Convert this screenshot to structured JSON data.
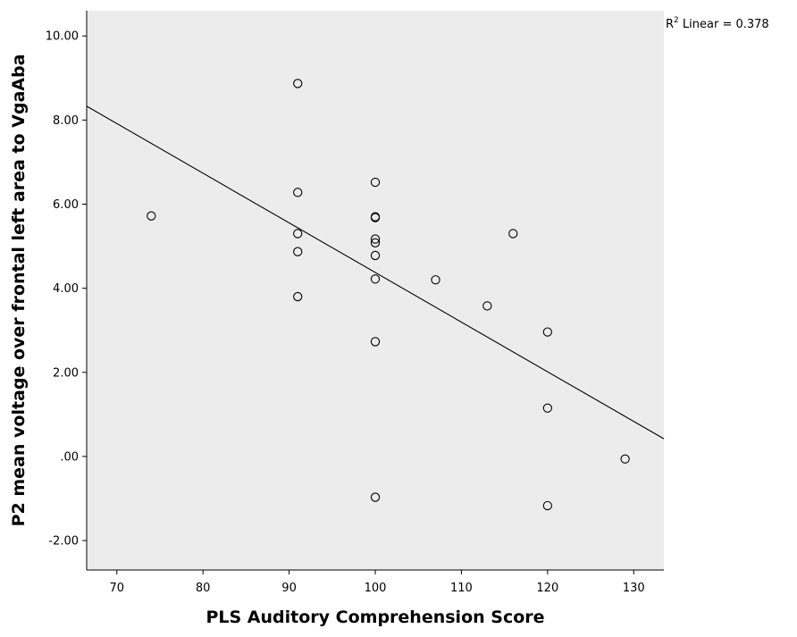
{
  "chart_data": {
    "type": "scatter",
    "title": "",
    "xlabel": "PLS Auditory Comprehension Score",
    "ylabel": "P2 mean voltage over frontal left area to VgaAba",
    "xlim": [
      66.5,
      133.5
    ],
    "ylim": [
      -2.7,
      10.6
    ],
    "x_ticks": [
      70,
      80,
      90,
      100,
      110,
      120,
      130
    ],
    "x_tick_labels": [
      "70",
      "80",
      "90",
      "100",
      "110",
      "120",
      "130"
    ],
    "y_ticks": [
      -2,
      0,
      2,
      4,
      6,
      8,
      10
    ],
    "y_tick_labels": [
      "-2.00",
      ".00",
      "2.00",
      "4.00",
      "6.00",
      "8.00",
      "10.00"
    ],
    "grid": false,
    "points": [
      {
        "x": 74,
        "y": 5.72
      },
      {
        "x": 91,
        "y": 8.87
      },
      {
        "x": 91,
        "y": 6.28
      },
      {
        "x": 91,
        "y": 5.3
      },
      {
        "x": 91,
        "y": 4.87
      },
      {
        "x": 91,
        "y": 3.8
      },
      {
        "x": 100,
        "y": 6.52
      },
      {
        "x": 100,
        "y": 5.7
      },
      {
        "x": 100,
        "y": 5.68
      },
      {
        "x": 100,
        "y": 5.17
      },
      {
        "x": 100,
        "y": 5.08
      },
      {
        "x": 100,
        "y": 4.78
      },
      {
        "x": 100,
        "y": 4.22
      },
      {
        "x": 100,
        "y": 2.73
      },
      {
        "x": 100,
        "y": -0.97
      },
      {
        "x": 107,
        "y": 4.2
      },
      {
        "x": 113,
        "y": 3.58
      },
      {
        "x": 116,
        "y": 5.3
      },
      {
        "x": 120,
        "y": 2.96
      },
      {
        "x": 120,
        "y": 1.15
      },
      {
        "x": 120,
        "y": -1.17
      },
      {
        "x": 129,
        "y": -0.06
      }
    ],
    "fit_line": {
      "type": "linear",
      "x": [
        66.5,
        133.5
      ],
      "y": [
        8.33,
        0.42
      ]
    },
    "annotation": {
      "r2_prefix": "R",
      "r2_sup": "2",
      "r2_text": " Linear = 0.378"
    },
    "colors": {
      "plot_background": "#ececec",
      "axis": "#000000",
      "marker_stroke": "#000000",
      "fit_line": "#000000"
    }
  }
}
